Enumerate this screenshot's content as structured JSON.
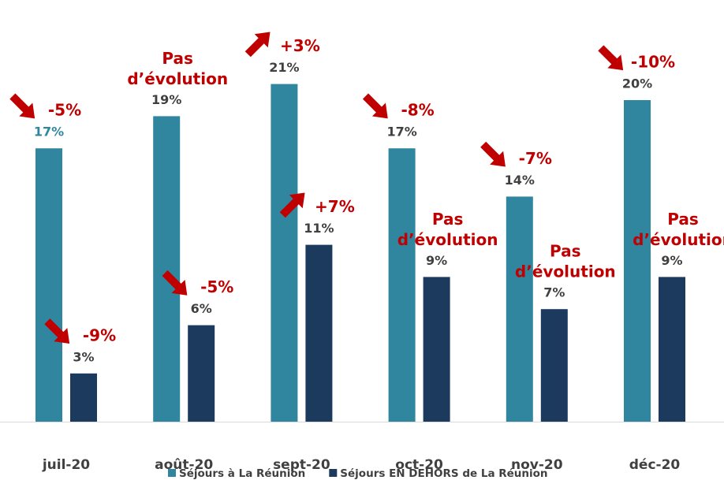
{
  "chart_data": {
    "type": "bar",
    "categories": [
      "juil-20",
      "août-20",
      "sept-20",
      "oct-20",
      "nov-20",
      "déc-20"
    ],
    "series": [
      {
        "name": "Séjours à La Réunion",
        "color": "#31869f",
        "values": [
          17,
          19,
          21,
          17,
          14,
          20
        ],
        "value_labels": [
          "17%",
          "19%",
          "21%",
          "17%",
          "14%",
          "20%"
        ],
        "annotations": [
          {
            "lines": [
              "-5%"
            ],
            "arrow": "down"
          },
          {
            "lines": [
              "Pas",
              "d’évolution"
            ],
            "arrow": null
          },
          {
            "lines": [
              "+3%"
            ],
            "arrow": "up"
          },
          {
            "lines": [
              "-8%"
            ],
            "arrow": "down"
          },
          {
            "lines": [
              "-7%"
            ],
            "arrow": "down"
          },
          {
            "lines": [
              "-10%"
            ],
            "arrow": "down"
          }
        ]
      },
      {
        "name": "Séjours EN DEHORS de La Réunion",
        "color": "#1c3a5e",
        "values": [
          3,
          6,
          11,
          9,
          7,
          9
        ],
        "value_labels": [
          "3%",
          "6%",
          "11%",
          "9%",
          "7%",
          "9%"
        ],
        "annotations": [
          {
            "lines": [
              "-9%"
            ],
            "arrow": "down"
          },
          {
            "lines": [
              "-5%"
            ],
            "arrow": "down"
          },
          {
            "lines": [
              "+7%"
            ],
            "arrow": "up"
          },
          {
            "lines": [
              "Pas",
              "d’évolution"
            ],
            "arrow": null
          },
          {
            "lines": [
              "Pas",
              "d’évolution"
            ],
            "arrow": null
          },
          {
            "lines": [
              "Pas",
              "d’évolution"
            ],
            "arrow": null
          }
        ]
      }
    ],
    "annotation_color": "#c00000",
    "legend": "bottom"
  }
}
